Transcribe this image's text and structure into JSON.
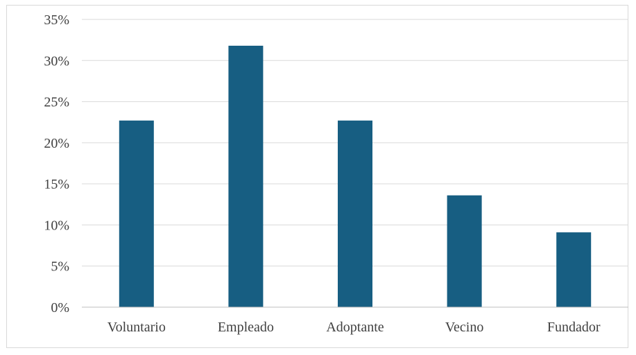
{
  "chart_data": {
    "type": "bar",
    "title": "",
    "xlabel": "",
    "ylabel": "",
    "categories": [
      "Voluntario",
      "Empleado",
      "Adoptante",
      "Vecino",
      "Fundador"
    ],
    "values": [
      22.7,
      31.8,
      22.7,
      13.6,
      9.1
    ],
    "ylim": [
      0,
      35
    ],
    "yticks": [
      0,
      5,
      10,
      15,
      20,
      25,
      30,
      35
    ],
    "ytick_labels": [
      "0%",
      "5%",
      "10%",
      "15%",
      "20%",
      "25%",
      "30%",
      "35%"
    ],
    "grid": true,
    "legend": "none",
    "colors": {
      "bar": "#175E82",
      "grid": "#d9d9d9",
      "axis": "#bfbfbf",
      "text": "#404040",
      "frame": "#d9d9d9"
    }
  }
}
